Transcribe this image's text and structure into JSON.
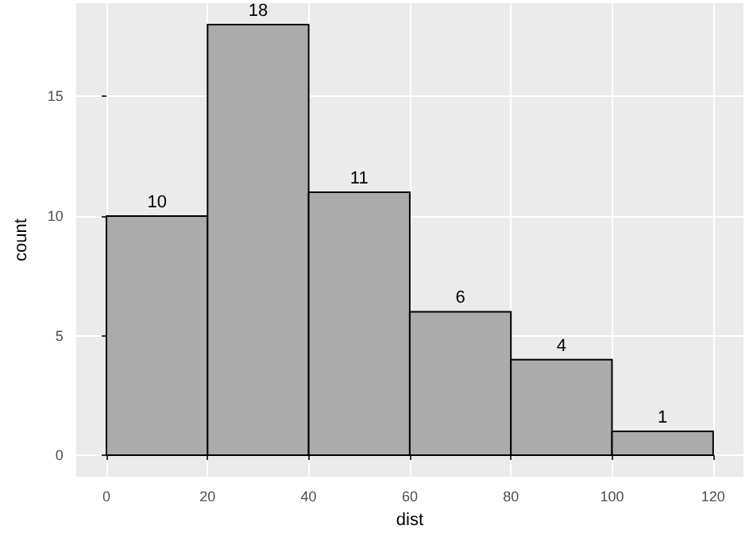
{
  "chart_data": {
    "type": "histogram",
    "bins": [
      0,
      20,
      40,
      60,
      80,
      100,
      120
    ],
    "values": [
      10,
      18,
      11,
      6,
      4,
      1
    ],
    "color": "#ababab",
    "xlabel": "dist",
    "ylabel": "count",
    "xlim": [
      -6,
      126
    ],
    "xticks": [
      0,
      20,
      40,
      60,
      80,
      100,
      120
    ],
    "ylim": [
      -0.9,
      18.9
    ],
    "yticks": [
      0,
      5,
      10,
      15
    ],
    "grid": true,
    "data_labels": true
  }
}
